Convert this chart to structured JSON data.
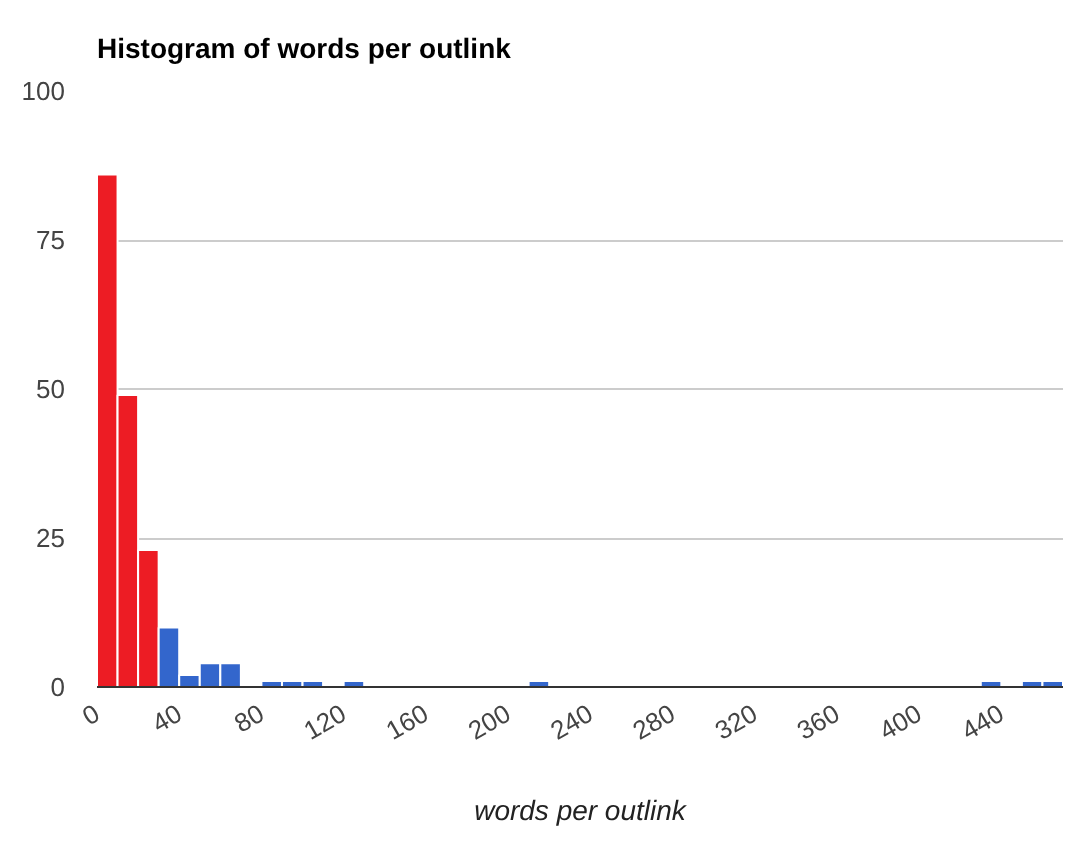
{
  "chart_data": {
    "type": "histogram",
    "title": "Histogram of words per outlink",
    "xlabel": "words per outlink",
    "bins": [
      0,
      10,
      20,
      30,
      40,
      50,
      60,
      70,
      80,
      90,
      100,
      110,
      120,
      130,
      140,
      150,
      160,
      170,
      180,
      190,
      200,
      210,
      220,
      230,
      240,
      250,
      260,
      270,
      280,
      290,
      300,
      310,
      320,
      330,
      340,
      350,
      360,
      370,
      380,
      390,
      400,
      410,
      420,
      430,
      440,
      450,
      460,
      470
    ],
    "values": [
      86,
      49,
      23,
      10,
      2,
      4,
      4,
      0,
      1,
      1,
      1,
      0,
      1,
      0,
      0,
      0,
      0,
      0,
      0,
      0,
      0,
      1,
      0,
      0,
      0,
      0,
      0,
      0,
      0,
      0,
      0,
      0,
      0,
      0,
      0,
      0,
      0,
      0,
      0,
      0,
      0,
      0,
      0,
      1,
      0,
      1,
      1
    ],
    "colors": [
      "#ed1c24",
      "#ed1c24",
      "#ed1c24",
      "#3366cc",
      "#3366cc",
      "#3366cc",
      "#3366cc",
      null,
      "#3366cc",
      "#3366cc",
      "#3366cc",
      null,
      "#3366cc",
      null,
      null,
      null,
      null,
      null,
      null,
      null,
      null,
      "#3366cc",
      null,
      null,
      null,
      null,
      null,
      null,
      null,
      null,
      null,
      null,
      null,
      null,
      null,
      null,
      null,
      null,
      null,
      null,
      null,
      null,
      null,
      "#3366cc",
      null,
      "#3366cc",
      "#3366cc"
    ],
    "xlim": [
      0,
      470
    ],
    "xticks": [
      0,
      40,
      80,
      120,
      160,
      200,
      240,
      280,
      320,
      360,
      400,
      440
    ],
    "ylim": [
      0,
      100
    ],
    "yticks": [
      0,
      25,
      50,
      75,
      100
    ],
    "grid": "y"
  }
}
